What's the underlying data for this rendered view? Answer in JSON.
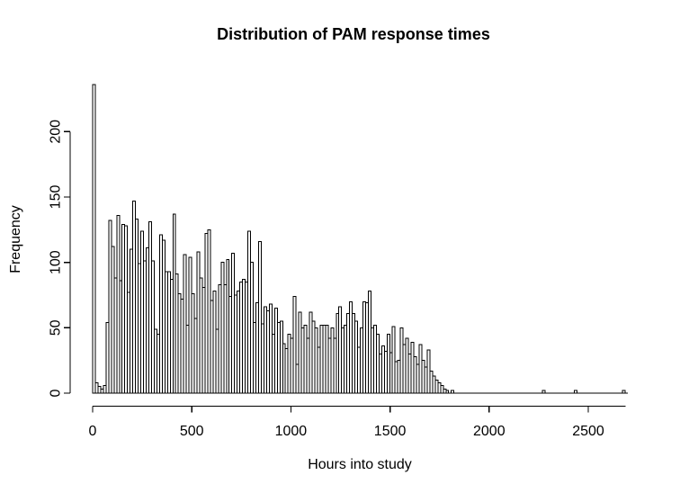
{
  "figure": {
    "background": "#ffffff"
  },
  "chart_data": {
    "type": "bar",
    "subtype": "histogram",
    "title": "Distribution of PAM response times",
    "xlabel": "Hours into study",
    "ylabel": "Frequency",
    "grid": false,
    "legend": "none",
    "bar_fill": "#ffffff",
    "bar_stroke": "#000000",
    "axis_color": "#000000",
    "text_color": "#000000",
    "xlim": [
      0,
      2700
    ],
    "ylim": [
      0,
      240
    ],
    "xticks": [
      0,
      500,
      1000,
      1500,
      2000,
      2500
    ],
    "yticks": [
      0,
      50,
      100,
      150,
      200
    ],
    "bin_start": 0,
    "bin_width": 13.5,
    "values": [
      236,
      8,
      5,
      3,
      6,
      54,
      132,
      112,
      88,
      136,
      86,
      129,
      128,
      77,
      110,
      147,
      133,
      99,
      124,
      101,
      111,
      131,
      101,
      49,
      45,
      121,
      117,
      93,
      93,
      87,
      137,
      91,
      76,
      72,
      106,
      52,
      104,
      76,
      57,
      108,
      88,
      81,
      122,
      125,
      71,
      78,
      49,
      83,
      100,
      83,
      102,
      74,
      107,
      75,
      78,
      85,
      87,
      85,
      124,
      100,
      54,
      69,
      116,
      53,
      66,
      63,
      68,
      45,
      65,
      54,
      55,
      38,
      34,
      45,
      42,
      74,
      22,
      62,
      50,
      52,
      42,
      62,
      55,
      50,
      35,
      52,
      52,
      52,
      42,
      50,
      42,
      61,
      66,
      50,
      52,
      61,
      70,
      61,
      55,
      35,
      50,
      70,
      69,
      78,
      50,
      52,
      45,
      30,
      36,
      32,
      45,
      31,
      51,
      24,
      25,
      50,
      37,
      42,
      30,
      39,
      28,
      22,
      37,
      25,
      20,
      33,
      17,
      13,
      10,
      8,
      6,
      3,
      2,
      0,
      2,
      0,
      0,
      0,
      0,
      0,
      0,
      0,
      0,
      0,
      0,
      0,
      0,
      0,
      0,
      0,
      0,
      0,
      0,
      0,
      0,
      0,
      0,
      0,
      0,
      0,
      0,
      0,
      0,
      0,
      0,
      0,
      0,
      0,
      2,
      0,
      0,
      0,
      0,
      0,
      0,
      0,
      0,
      0,
      0,
      0,
      2,
      0,
      0,
      0,
      0,
      0,
      0,
      0,
      0,
      0,
      0,
      0,
      0,
      0,
      0,
      0,
      0,
      0,
      2,
      0
    ]
  }
}
